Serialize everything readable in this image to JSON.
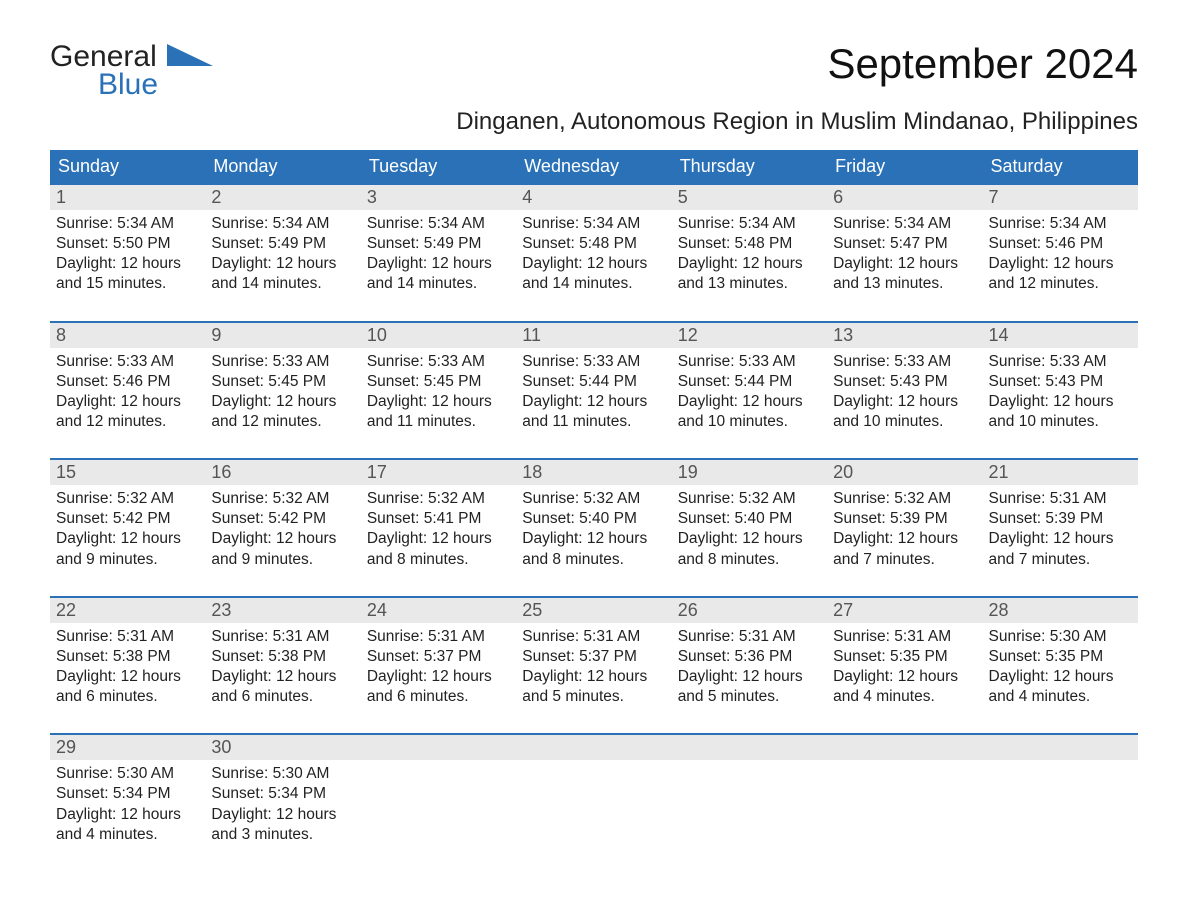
{
  "logo": {
    "general": "General",
    "blue": "Blue"
  },
  "title": "September 2024",
  "location": "Dinganen, Autonomous Region in Muslim Mindanao, Philippines",
  "weekdays": [
    "Sunday",
    "Monday",
    "Tuesday",
    "Wednesday",
    "Thursday",
    "Friday",
    "Saturday"
  ],
  "colors": {
    "header_bg": "#2a71b8",
    "header_text": "#ffffff",
    "daynum_bg": "#e9e9e9",
    "text": "#222222",
    "border": "#2a71b8"
  },
  "weeks": [
    [
      {
        "d": "1",
        "sr": "Sunrise: 5:34 AM",
        "ss": "Sunset: 5:50 PM",
        "dl1": "Daylight: 12 hours",
        "dl2": "and 15 minutes."
      },
      {
        "d": "2",
        "sr": "Sunrise: 5:34 AM",
        "ss": "Sunset: 5:49 PM",
        "dl1": "Daylight: 12 hours",
        "dl2": "and 14 minutes."
      },
      {
        "d": "3",
        "sr": "Sunrise: 5:34 AM",
        "ss": "Sunset: 5:49 PM",
        "dl1": "Daylight: 12 hours",
        "dl2": "and 14 minutes."
      },
      {
        "d": "4",
        "sr": "Sunrise: 5:34 AM",
        "ss": "Sunset: 5:48 PM",
        "dl1": "Daylight: 12 hours",
        "dl2": "and 14 minutes."
      },
      {
        "d": "5",
        "sr": "Sunrise: 5:34 AM",
        "ss": "Sunset: 5:48 PM",
        "dl1": "Daylight: 12 hours",
        "dl2": "and 13 minutes."
      },
      {
        "d": "6",
        "sr": "Sunrise: 5:34 AM",
        "ss": "Sunset: 5:47 PM",
        "dl1": "Daylight: 12 hours",
        "dl2": "and 13 minutes."
      },
      {
        "d": "7",
        "sr": "Sunrise: 5:34 AM",
        "ss": "Sunset: 5:46 PM",
        "dl1": "Daylight: 12 hours",
        "dl2": "and 12 minutes."
      }
    ],
    [
      {
        "d": "8",
        "sr": "Sunrise: 5:33 AM",
        "ss": "Sunset: 5:46 PM",
        "dl1": "Daylight: 12 hours",
        "dl2": "and 12 minutes."
      },
      {
        "d": "9",
        "sr": "Sunrise: 5:33 AM",
        "ss": "Sunset: 5:45 PM",
        "dl1": "Daylight: 12 hours",
        "dl2": "and 12 minutes."
      },
      {
        "d": "10",
        "sr": "Sunrise: 5:33 AM",
        "ss": "Sunset: 5:45 PM",
        "dl1": "Daylight: 12 hours",
        "dl2": "and 11 minutes."
      },
      {
        "d": "11",
        "sr": "Sunrise: 5:33 AM",
        "ss": "Sunset: 5:44 PM",
        "dl1": "Daylight: 12 hours",
        "dl2": "and 11 minutes."
      },
      {
        "d": "12",
        "sr": "Sunrise: 5:33 AM",
        "ss": "Sunset: 5:44 PM",
        "dl1": "Daylight: 12 hours",
        "dl2": "and 10 minutes."
      },
      {
        "d": "13",
        "sr": "Sunrise: 5:33 AM",
        "ss": "Sunset: 5:43 PM",
        "dl1": "Daylight: 12 hours",
        "dl2": "and 10 minutes."
      },
      {
        "d": "14",
        "sr": "Sunrise: 5:33 AM",
        "ss": "Sunset: 5:43 PM",
        "dl1": "Daylight: 12 hours",
        "dl2": "and 10 minutes."
      }
    ],
    [
      {
        "d": "15",
        "sr": "Sunrise: 5:32 AM",
        "ss": "Sunset: 5:42 PM",
        "dl1": "Daylight: 12 hours",
        "dl2": "and 9 minutes."
      },
      {
        "d": "16",
        "sr": "Sunrise: 5:32 AM",
        "ss": "Sunset: 5:42 PM",
        "dl1": "Daylight: 12 hours",
        "dl2": "and 9 minutes."
      },
      {
        "d": "17",
        "sr": "Sunrise: 5:32 AM",
        "ss": "Sunset: 5:41 PM",
        "dl1": "Daylight: 12 hours",
        "dl2": "and 8 minutes."
      },
      {
        "d": "18",
        "sr": "Sunrise: 5:32 AM",
        "ss": "Sunset: 5:40 PM",
        "dl1": "Daylight: 12 hours",
        "dl2": "and 8 minutes."
      },
      {
        "d": "19",
        "sr": "Sunrise: 5:32 AM",
        "ss": "Sunset: 5:40 PM",
        "dl1": "Daylight: 12 hours",
        "dl2": "and 8 minutes."
      },
      {
        "d": "20",
        "sr": "Sunrise: 5:32 AM",
        "ss": "Sunset: 5:39 PM",
        "dl1": "Daylight: 12 hours",
        "dl2": "and 7 minutes."
      },
      {
        "d": "21",
        "sr": "Sunrise: 5:31 AM",
        "ss": "Sunset: 5:39 PM",
        "dl1": "Daylight: 12 hours",
        "dl2": "and 7 minutes."
      }
    ],
    [
      {
        "d": "22",
        "sr": "Sunrise: 5:31 AM",
        "ss": "Sunset: 5:38 PM",
        "dl1": "Daylight: 12 hours",
        "dl2": "and 6 minutes."
      },
      {
        "d": "23",
        "sr": "Sunrise: 5:31 AM",
        "ss": "Sunset: 5:38 PM",
        "dl1": "Daylight: 12 hours",
        "dl2": "and 6 minutes."
      },
      {
        "d": "24",
        "sr": "Sunrise: 5:31 AM",
        "ss": "Sunset: 5:37 PM",
        "dl1": "Daylight: 12 hours",
        "dl2": "and 6 minutes."
      },
      {
        "d": "25",
        "sr": "Sunrise: 5:31 AM",
        "ss": "Sunset: 5:37 PM",
        "dl1": "Daylight: 12 hours",
        "dl2": "and 5 minutes."
      },
      {
        "d": "26",
        "sr": "Sunrise: 5:31 AM",
        "ss": "Sunset: 5:36 PM",
        "dl1": "Daylight: 12 hours",
        "dl2": "and 5 minutes."
      },
      {
        "d": "27",
        "sr": "Sunrise: 5:31 AM",
        "ss": "Sunset: 5:35 PM",
        "dl1": "Daylight: 12 hours",
        "dl2": "and 4 minutes."
      },
      {
        "d": "28",
        "sr": "Sunrise: 5:30 AM",
        "ss": "Sunset: 5:35 PM",
        "dl1": "Daylight: 12 hours",
        "dl2": "and 4 minutes."
      }
    ],
    [
      {
        "d": "29",
        "sr": "Sunrise: 5:30 AM",
        "ss": "Sunset: 5:34 PM",
        "dl1": "Daylight: 12 hours",
        "dl2": "and 4 minutes."
      },
      {
        "d": "30",
        "sr": "Sunrise: 5:30 AM",
        "ss": "Sunset: 5:34 PM",
        "dl1": "Daylight: 12 hours",
        "dl2": "and 3 minutes."
      },
      {
        "d": "",
        "sr": "",
        "ss": "",
        "dl1": "",
        "dl2": ""
      },
      {
        "d": "",
        "sr": "",
        "ss": "",
        "dl1": "",
        "dl2": ""
      },
      {
        "d": "",
        "sr": "",
        "ss": "",
        "dl1": "",
        "dl2": ""
      },
      {
        "d": "",
        "sr": "",
        "ss": "",
        "dl1": "",
        "dl2": ""
      },
      {
        "d": "",
        "sr": "",
        "ss": "",
        "dl1": "",
        "dl2": ""
      }
    ]
  ]
}
